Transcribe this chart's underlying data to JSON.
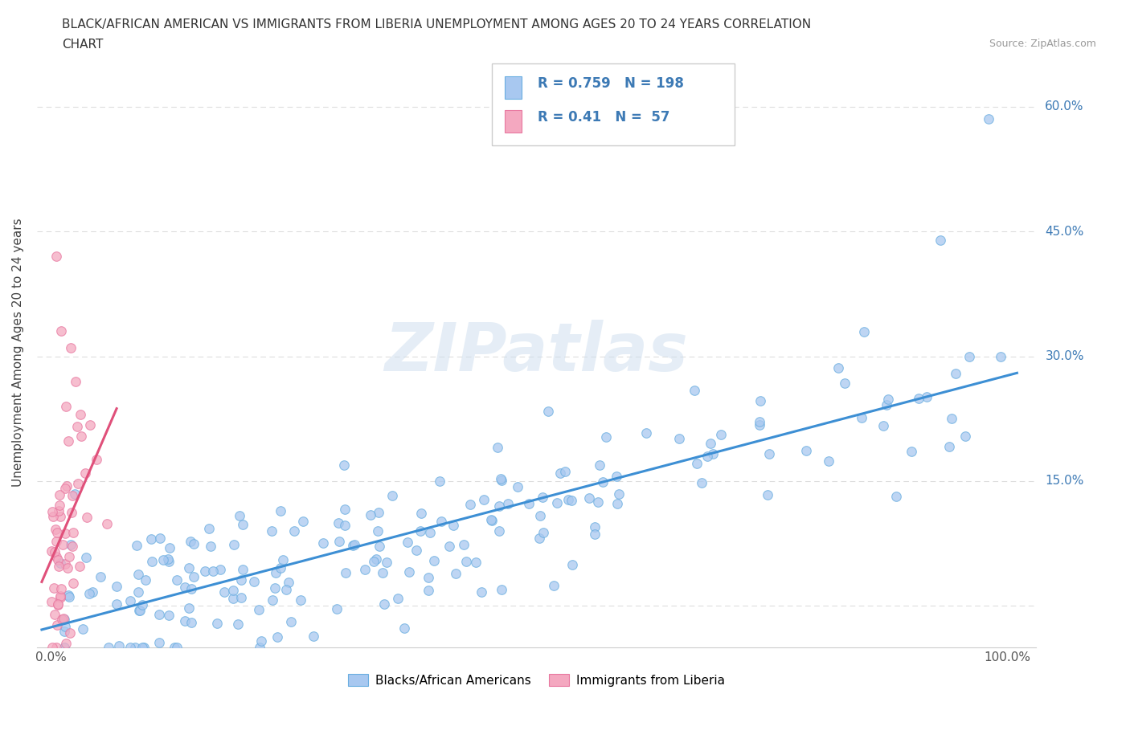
{
  "title_line1": "BLACK/AFRICAN AMERICAN VS IMMIGRANTS FROM LIBERIA UNEMPLOYMENT AMONG AGES 20 TO 24 YEARS CORRELATION",
  "title_line2": "CHART",
  "source_text": "Source: ZipAtlas.com",
  "ylabel": "Unemployment Among Ages 20 to 24 years",
  "watermark": "ZIPatlas",
  "blue_R": 0.759,
  "blue_N": 198,
  "pink_R": 0.41,
  "pink_N": 57,
  "blue_color": "#a8c8f0",
  "blue_edge_color": "#6aaee0",
  "pink_color": "#f4a8c0",
  "pink_edge_color": "#e878a0",
  "blue_line_color": "#3d8fd4",
  "pink_line_color": "#e0507a",
  "legend_label_blue": "Blacks/African Americans",
  "legend_label_pink": "Immigrants from Liberia",
  "background_color": "#ffffff",
  "grid_color": "#dddddd",
  "tick_label_color": "#3d7ab5",
  "title_color": "#333333",
  "source_color": "#999999"
}
